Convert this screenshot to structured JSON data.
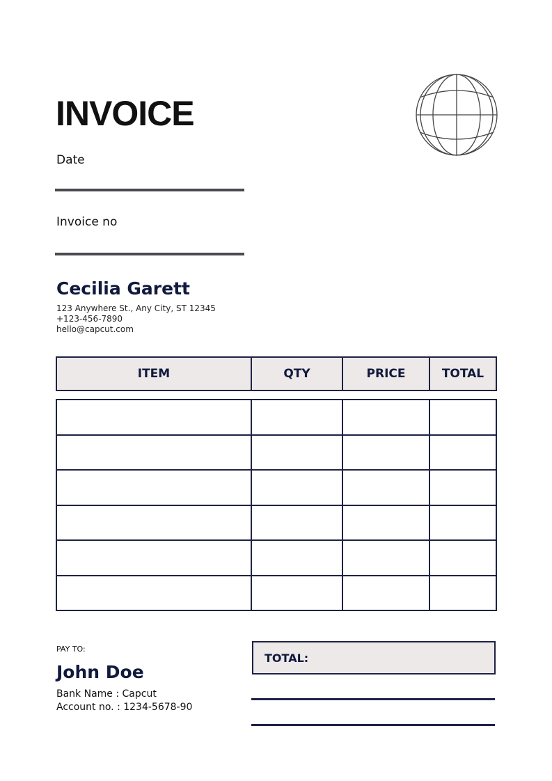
{
  "header": {
    "title": "INVOICE",
    "date_label": "Date",
    "invoice_no_label": "Invoice no",
    "logo_icon": "globe-icon"
  },
  "sender": {
    "name": "Cecilia Garett",
    "address": "123 Anywhere St., Any City, ST 12345",
    "phone": "+123-456-7890",
    "email": "hello@capcut.com"
  },
  "table": {
    "columns": [
      "ITEM",
      "QTY",
      "PRICE",
      "TOTAL"
    ],
    "rows": [
      [
        "",
        "",
        "",
        ""
      ],
      [
        "",
        "",
        "",
        ""
      ],
      [
        "",
        "",
        "",
        ""
      ],
      [
        "",
        "",
        "",
        ""
      ],
      [
        "",
        "",
        "",
        ""
      ],
      [
        "",
        "",
        "",
        ""
      ]
    ]
  },
  "pay_to": {
    "label": "PAY TO:",
    "name": "John Doe",
    "bank": "Bank Name : Capcut",
    "account": "Account no. : 1234-5678-90"
  },
  "totals": {
    "label": "TOTAL:"
  },
  "colors": {
    "navy": "#1e2245",
    "header_fill": "#ede9e8"
  }
}
